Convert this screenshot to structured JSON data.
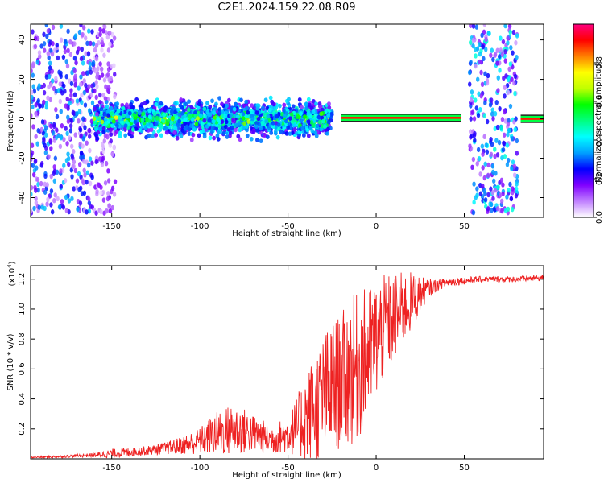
{
  "chart_data": [
    {
      "type": "heatmap",
      "title": "C2E1.2024.159.22.08.R09",
      "xlabel": "Height of straight line (km)",
      "ylabel": "Frequency (Hz)",
      "xlim": [
        -196,
        95
      ],
      "ylim": [
        -50,
        48
      ],
      "xticks": [
        -150,
        -100,
        -50,
        0,
        50
      ],
      "yticks": [
        -40,
        -20,
        0,
        20,
        40
      ],
      "colorbar": {
        "label": "Normalized spectral amplitude",
        "range": [
          0,
          1
        ],
        "ticks": [
          "0.0",
          "0.2",
          "0.4",
          "0.6",
          "0.8"
        ],
        "colors": [
          "#ffffff",
          "#c080ff",
          "#8000ff",
          "#0000ff",
          "#00a0ff",
          "#00ffff",
          "#00ff80",
          "#00ff00",
          "#c0ff00",
          "#ffff00",
          "#ff8000",
          "#ff0000",
          "#ff0080"
        ]
      },
      "regions": [
        {
          "name": "noise",
          "x": [
            -196,
            -160
          ],
          "freq_spread": 48,
          "level": 0.15
        },
        {
          "name": "noise-sparse",
          "x": [
            -160,
            -148
          ],
          "freq_spread": 48,
          "level": 0.08
        },
        {
          "name": "broadband",
          "x": [
            -160,
            -25
          ],
          "freq_center": 0,
          "freq_spread": 12,
          "level": 0.3
        },
        {
          "name": "carrier",
          "x": [
            -20,
            48
          ],
          "freq_center": 0.5,
          "freq_spread": 1.5,
          "level": 0.9
        },
        {
          "name": "noise-band",
          "x": [
            53,
            80
          ],
          "freq_spread": 48,
          "level": 0.18
        },
        {
          "name": "carrier",
          "x": [
            82,
            95
          ],
          "freq_center": 0,
          "freq_spread": 1.5,
          "level": 0.9
        }
      ]
    },
    {
      "type": "line",
      "xlabel": "Height of straight line (km)",
      "ylabel": "SNR (10 * v/v)",
      "y_multiplier": "(x10",
      "y_multiplier_exp": "4",
      "y_multiplier_close": ")",
      "xlim": [
        -196,
        95
      ],
      "ylim": [
        0,
        1.29
      ],
      "xticks": [
        -150,
        -100,
        -50,
        0,
        50
      ],
      "yticks": [
        0.2,
        0.4,
        0.6,
        0.8,
        1.0,
        1.2
      ],
      "series": [
        {
          "color": "#ee2222",
          "x": [
            -196,
            -180,
            -170,
            -160,
            -150,
            -140,
            -130,
            -120,
            -110,
            -100,
            -90,
            -80,
            -70,
            -60,
            -50,
            -45,
            -40,
            -35,
            -30,
            -25,
            -20,
            -15,
            -10,
            -5,
            0,
            5,
            10,
            15,
            20,
            25,
            30,
            35,
            40,
            50,
            60,
            70,
            80,
            95
          ],
          "y": [
            0.01,
            0.015,
            0.02,
            0.025,
            0.035,
            0.045,
            0.055,
            0.07,
            0.09,
            0.12,
            0.17,
            0.2,
            0.17,
            0.13,
            0.16,
            0.21,
            0.28,
            0.34,
            0.41,
            0.47,
            0.52,
            0.57,
            0.62,
            0.7,
            0.8,
            0.88,
            0.94,
            1.0,
            1.05,
            1.1,
            1.14,
            1.16,
            1.18,
            1.19,
            1.2,
            1.2,
            1.2,
            1.21
          ],
          "spread": [
            0.005,
            0.008,
            0.01,
            0.015,
            0.03,
            0.03,
            0.03,
            0.04,
            0.06,
            0.09,
            0.15,
            0.18,
            0.13,
            0.1,
            0.12,
            0.2,
            0.3,
            0.36,
            0.42,
            0.45,
            0.45,
            0.5,
            0.5,
            0.45,
            0.4,
            0.35,
            0.3,
            0.25,
            0.2,
            0.12,
            0.06,
            0.04,
            0.03,
            0.025,
            0.02,
            0.02,
            0.02,
            0.02
          ]
        }
      ]
    }
  ]
}
